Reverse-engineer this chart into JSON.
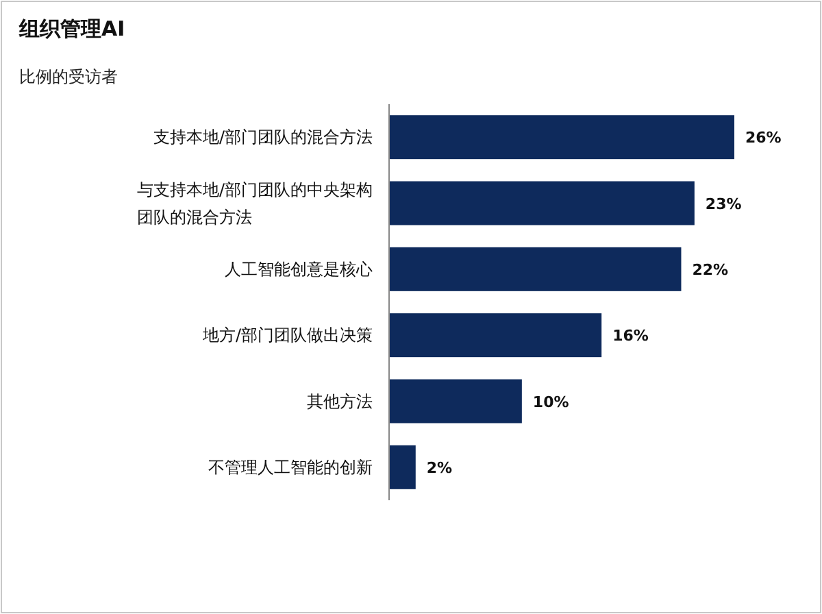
{
  "chart_data": {
    "type": "bar",
    "orientation": "horizontal",
    "title": "组织管理AI",
    "subtitle": "比例的受访者",
    "categories": [
      "支持本地/部门团队的混合方法",
      "与支持本地/部门团队的中央架构团队的混合方法",
      "人工智能创意是核心",
      "地方/部门团队做出决策",
      "其他方法",
      "不管理人工智能的创新"
    ],
    "values": [
      26,
      23,
      22,
      16,
      10,
      2
    ],
    "value_labels": [
      "26%",
      "23%",
      "22%",
      "16%",
      "10%",
      "2%"
    ],
    "color": "#0e2a5c"
  }
}
